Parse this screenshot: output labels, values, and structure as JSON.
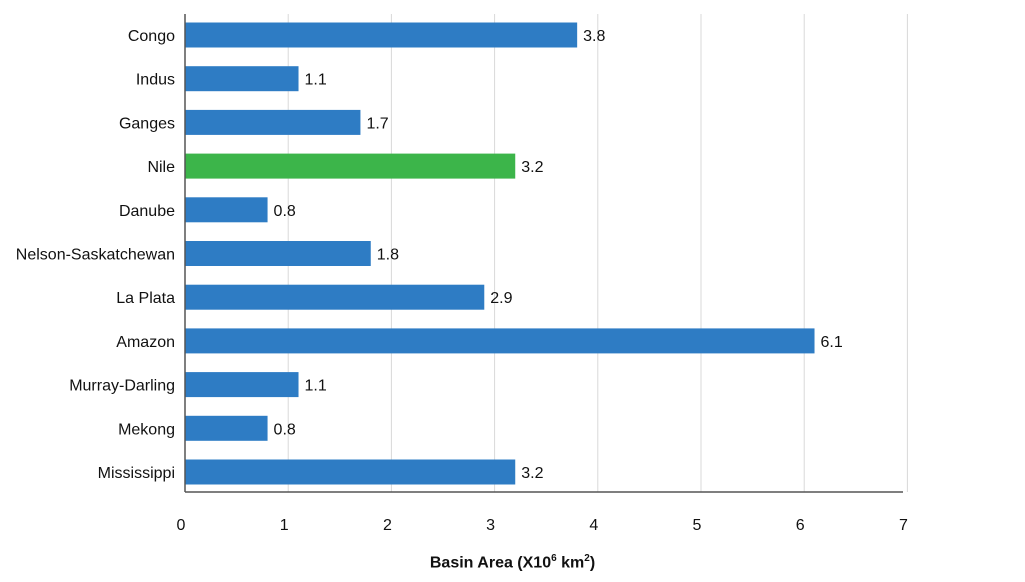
{
  "chart_data": {
    "type": "bar",
    "orientation": "horizontal",
    "categories": [
      "Congo",
      "Indus",
      "Ganges",
      "Nile",
      "Danube",
      "Nelson-Saskatchewan",
      "La Plata",
      "Amazon",
      "Murray-Darling",
      "Mekong",
      "Mississippi"
    ],
    "values": [
      3.8,
      1.1,
      1.7,
      3.2,
      0.8,
      1.8,
      2.9,
      6.1,
      1.1,
      0.8,
      3.2
    ],
    "value_labels": [
      "3.8",
      "1.1",
      "1.7",
      "3.2",
      "0.8",
      "1.8",
      "2.9",
      "6.1",
      "1.1",
      "0.8",
      "3.2"
    ],
    "highlight_category": "Nile",
    "xlabel_main": "Basin Area (X10",
    "xlabel_exp": "6",
    "xlabel_unit": " km",
    "xlabel_unit_exp": "2",
    "xlabel_close": ")",
    "xlim": [
      0,
      7
    ],
    "xticks": [
      "0",
      "1",
      "2",
      "3",
      "4",
      "5",
      "6",
      "7"
    ],
    "grid": true,
    "colors": {
      "bar": "#2e7cc4",
      "highlight": "#3cb54a",
      "grid": "#d9d9d9",
      "axis": "#555555"
    }
  }
}
